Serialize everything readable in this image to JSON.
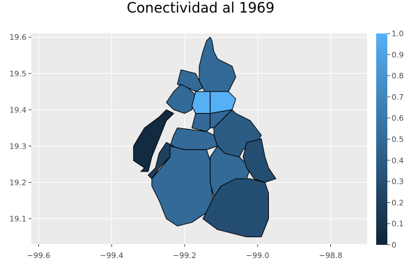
{
  "chart_data": {
    "type": "choropleth",
    "title": "Conectividad al 1969",
    "xlabel": "",
    "ylabel": "",
    "xlim": [
      -99.62,
      -98.7
    ],
    "ylim": [
      19.03,
      19.61
    ],
    "x_ticks": [
      -99.6,
      -99.4,
      -99.2,
      -99.0,
      -98.8
    ],
    "x_tick_labels": [
      "−99.6",
      "−99.4",
      "−99.2",
      "−99.0",
      "−98.8"
    ],
    "y_ticks": [
      19.1,
      19.2,
      19.3,
      19.4,
      19.5,
      19.6
    ],
    "y_tick_labels": [
      "19.1",
      "19.2",
      "19.3",
      "19.4",
      "19.5",
      "19.6"
    ],
    "grid": true,
    "colorbar": {
      "min": 0,
      "max": 1,
      "ticks": [
        0,
        0.1,
        0.2,
        0.3,
        0.4,
        0.5,
        0.6,
        0.7,
        0.8,
        0.9,
        1.0
      ],
      "tick_labels": [
        "0",
        "0.1",
        "0.2",
        "0.3",
        "0.4",
        "0.5",
        "0.6",
        "0.7",
        "0.8",
        "0.9",
        "1.0"
      ],
      "color_low": "#0f2438",
      "color_high": "#56b0f5"
    },
    "regions": [
      {
        "value": 0.5,
        "points": [
          [
            -99.14,
            19.59
          ],
          [
            -99.13,
            19.6
          ],
          [
            -99.125,
            19.59
          ],
          [
            -99.12,
            19.56
          ],
          [
            -99.11,
            19.54
          ],
          [
            -99.07,
            19.52
          ],
          [
            -99.06,
            19.49
          ],
          [
            -99.08,
            19.45
          ],
          [
            -99.14,
            19.44
          ],
          [
            -99.16,
            19.48
          ],
          [
            -99.16,
            19.52
          ],
          [
            -99.15,
            19.56
          ]
        ]
      },
      {
        "value": 0.5,
        "points": [
          [
            -99.21,
            19.51
          ],
          [
            -99.17,
            19.5
          ],
          [
            -99.16,
            19.48
          ],
          [
            -99.15,
            19.46
          ],
          [
            -99.17,
            19.45
          ],
          [
            -99.19,
            19.46
          ],
          [
            -99.22,
            19.47
          ]
        ]
      },
      {
        "value": 0.5,
        "points": [
          [
            -99.21,
            19.47
          ],
          [
            -99.19,
            19.46
          ],
          [
            -99.17,
            19.44
          ],
          [
            -99.18,
            19.4
          ],
          [
            -99.2,
            19.39
          ],
          [
            -99.23,
            19.4
          ],
          [
            -99.25,
            19.42
          ],
          [
            -99.23,
            19.45
          ]
        ]
      },
      {
        "value": 1.0,
        "points": [
          [
            -99.17,
            19.45
          ],
          [
            -99.13,
            19.45
          ],
          [
            -99.13,
            19.42
          ],
          [
            -99.13,
            19.39
          ],
          [
            -99.17,
            19.39
          ],
          [
            -99.18,
            19.41
          ]
        ]
      },
      {
        "value": 1.0,
        "points": [
          [
            -99.13,
            19.45
          ],
          [
            -99.08,
            19.45
          ],
          [
            -99.06,
            19.43
          ],
          [
            -99.07,
            19.4
          ],
          [
            -99.13,
            19.39
          ]
        ]
      },
      {
        "value": 0.5,
        "points": [
          [
            -99.17,
            19.39
          ],
          [
            -99.13,
            19.39
          ],
          [
            -99.13,
            19.35
          ],
          [
            -99.14,
            19.34
          ],
          [
            -99.18,
            19.35
          ]
        ]
      },
      {
        "value": 0.5,
        "points": [
          [
            -99.13,
            19.39
          ],
          [
            -99.07,
            19.4
          ],
          [
            -99.1,
            19.37
          ],
          [
            -99.12,
            19.35
          ],
          [
            -99.13,
            19.35
          ]
        ]
      },
      {
        "value": 0.5,
        "points": [
          [
            -99.22,
            19.35
          ],
          [
            -99.14,
            19.34
          ],
          [
            -99.12,
            19.33
          ],
          [
            -99.11,
            19.3
          ],
          [
            -99.14,
            19.29
          ],
          [
            -99.2,
            19.29
          ],
          [
            -99.24,
            19.3
          ],
          [
            -99.23,
            19.33
          ]
        ]
      },
      {
        "value": 0.4,
        "points": [
          [
            -99.12,
            19.35
          ],
          [
            -99.1,
            19.37
          ],
          [
            -99.07,
            19.4
          ],
          [
            -99.06,
            19.39
          ],
          [
            -99.02,
            19.37
          ],
          [
            -98.99,
            19.33
          ],
          [
            -99.0,
            19.31
          ],
          [
            -99.04,
            19.29
          ],
          [
            -99.05,
            19.27
          ],
          [
            -99.09,
            19.28
          ],
          [
            -99.11,
            19.3
          ],
          [
            -99.12,
            19.33
          ]
        ]
      },
      {
        "value": 0.05,
        "points": [
          [
            -99.25,
            19.4
          ],
          [
            -99.27,
            19.38
          ],
          [
            -99.31,
            19.35
          ],
          [
            -99.34,
            19.3
          ],
          [
            -99.34,
            19.26
          ],
          [
            -99.31,
            19.24
          ],
          [
            -99.32,
            19.23
          ],
          [
            -99.3,
            19.23
          ],
          [
            -99.29,
            19.27
          ],
          [
            -99.27,
            19.32
          ],
          [
            -99.25,
            19.37
          ],
          [
            -99.23,
            19.39
          ]
        ]
      },
      {
        "value": 0.2,
        "points": [
          [
            -99.3,
            19.22
          ],
          [
            -99.28,
            19.24
          ],
          [
            -99.27,
            19.28
          ],
          [
            -99.25,
            19.31
          ],
          [
            -99.23,
            19.3
          ],
          [
            -99.24,
            19.27
          ],
          [
            -99.27,
            19.24
          ],
          [
            -99.29,
            19.21
          ]
        ]
      },
      {
        "value": 0.5,
        "points": [
          [
            -99.29,
            19.21
          ],
          [
            -99.24,
            19.27
          ],
          [
            -99.24,
            19.3
          ],
          [
            -99.2,
            19.29
          ],
          [
            -99.14,
            19.29
          ],
          [
            -99.13,
            19.26
          ],
          [
            -99.13,
            19.21
          ],
          [
            -99.12,
            19.13
          ],
          [
            -99.15,
            19.11
          ],
          [
            -99.18,
            19.09
          ],
          [
            -99.22,
            19.08
          ],
          [
            -99.25,
            19.1
          ],
          [
            -99.27,
            19.15
          ],
          [
            -99.29,
            19.19
          ]
        ]
      },
      {
        "value": 0.5,
        "points": [
          [
            -99.13,
            19.27
          ],
          [
            -99.11,
            19.3
          ],
          [
            -99.09,
            19.28
          ],
          [
            -99.05,
            19.27
          ],
          [
            -99.02,
            19.24
          ],
          [
            -99.03,
            19.21
          ],
          [
            -99.06,
            19.2
          ],
          [
            -99.1,
            19.19
          ],
          [
            -99.12,
            19.16
          ],
          [
            -99.13,
            19.2
          ]
        ]
      },
      {
        "value": 0.3,
        "points": [
          [
            -99.03,
            19.31
          ],
          [
            -98.99,
            19.32
          ],
          [
            -98.98,
            19.27
          ],
          [
            -98.97,
            19.24
          ],
          [
            -98.95,
            19.21
          ],
          [
            -98.98,
            19.2
          ],
          [
            -99.01,
            19.21
          ],
          [
            -99.03,
            19.24
          ],
          [
            -99.04,
            19.27
          ]
        ]
      },
      {
        "value": 0.3,
        "points": [
          [
            -99.12,
            19.16
          ],
          [
            -99.1,
            19.19
          ],
          [
            -99.06,
            19.21
          ],
          [
            -99.02,
            19.21
          ],
          [
            -98.98,
            19.2
          ],
          [
            -98.97,
            19.17
          ],
          [
            -98.97,
            19.1
          ],
          [
            -98.99,
            19.05
          ],
          [
            -99.03,
            19.05
          ],
          [
            -99.07,
            19.06
          ],
          [
            -99.11,
            19.07
          ],
          [
            -99.15,
            19.1
          ]
        ]
      }
    ]
  }
}
